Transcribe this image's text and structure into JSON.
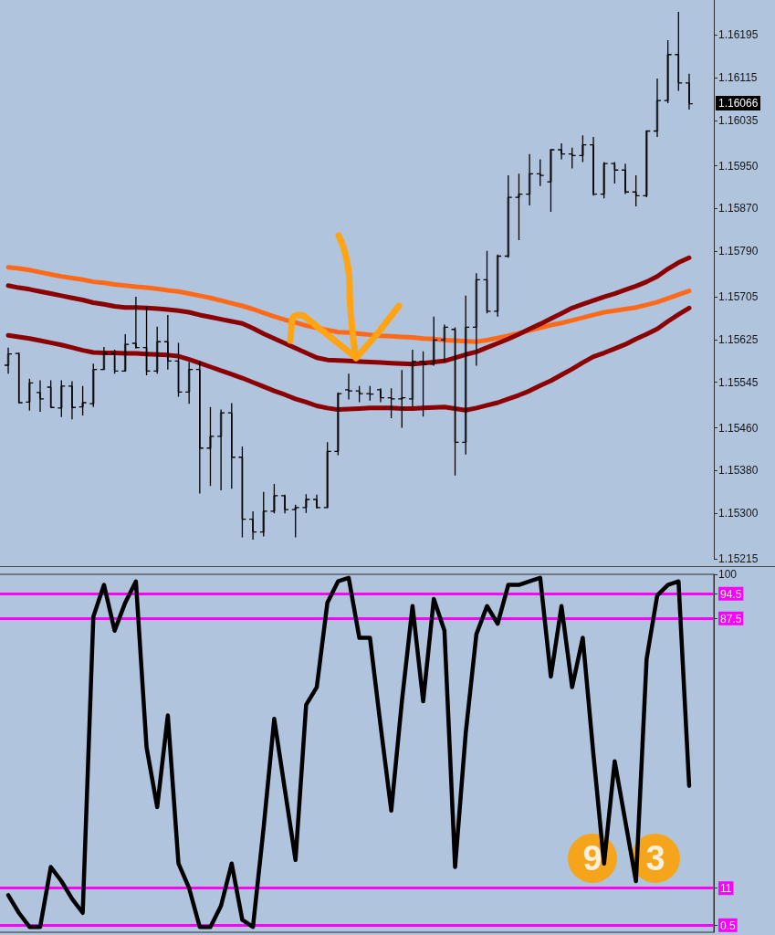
{
  "chart_data": [
    {
      "type": "candlestick",
      "categories": [
        null,
        null,
        null,
        null,
        null,
        null,
        null,
        null,
        null,
        null,
        null,
        null,
        null,
        null,
        null,
        null,
        null,
        null,
        null,
        null,
        null,
        null,
        null,
        null,
        null,
        null,
        null,
        null,
        null,
        null,
        null,
        null,
        null,
        null,
        null,
        null,
        null,
        null,
        null,
        null,
        null,
        null,
        null,
        null,
        null,
        null,
        null,
        null,
        null,
        null,
        null,
        null,
        null,
        null,
        null,
        null,
        null,
        null,
        null,
        null,
        null,
        null,
        null,
        null,
        null
      ],
      "ohlc": [
        [
          1.15577,
          1.1561,
          1.15561,
          1.15598
        ],
        [
          1.15599,
          1.15601,
          1.15507,
          1.15507
        ],
        [
          1.15508,
          1.15552,
          1.15492,
          1.15544
        ],
        [
          1.15526,
          1.15549,
          1.1549,
          1.15514
        ],
        [
          1.15536,
          1.15549,
          1.15497,
          1.15498
        ],
        [
          1.15497,
          1.15549,
          1.1548,
          1.15538
        ],
        [
          1.15538,
          1.15547,
          1.15476,
          1.15498
        ],
        [
          1.15499,
          1.15538,
          1.15483,
          1.15507
        ],
        [
          1.15505,
          1.1558,
          1.15499,
          1.15569
        ],
        [
          1.15569,
          1.15611,
          1.15568,
          1.15599
        ],
        [
          1.15599,
          1.15606,
          1.15561,
          1.15566
        ],
        [
          1.15566,
          1.15635,
          1.15566,
          1.15616
        ],
        [
          1.15618,
          1.15705,
          1.15608,
          1.1561
        ],
        [
          1.1561,
          1.15686,
          1.15558,
          1.15566
        ],
        [
          1.15566,
          1.15649,
          1.15561,
          1.15621
        ],
        [
          1.15621,
          1.15671,
          1.15569,
          1.15585
        ],
        [
          1.15585,
          1.15619,
          1.15518,
          1.15527
        ],
        [
          1.15527,
          1.15583,
          1.15505,
          1.15569
        ],
        [
          1.15569,
          1.15585,
          1.15337,
          1.15422
        ],
        [
          1.15422,
          1.15499,
          1.15351,
          1.15444
        ],
        [
          1.15444,
          1.15494,
          1.15343,
          1.15488
        ],
        [
          1.15488,
          1.15506,
          1.15346,
          1.15405
        ],
        [
          1.15405,
          1.15425,
          1.15255,
          1.15289
        ],
        [
          1.15289,
          1.15304,
          1.15251,
          1.15265
        ],
        [
          1.15265,
          1.1534,
          1.15257,
          1.15304
        ],
        [
          1.15304,
          1.15355,
          1.153,
          1.15333
        ],
        [
          1.15333,
          1.15335,
          1.153,
          1.15307
        ],
        [
          1.15307,
          1.15316,
          1.15255,
          1.15311
        ],
        [
          1.15311,
          1.15336,
          1.15301,
          1.15326
        ],
        [
          1.15326,
          1.15335,
          1.15309,
          1.15311
        ],
        [
          1.15311,
          1.15433,
          1.15311,
          1.15416
        ],
        [
          1.15416,
          1.15526,
          1.15409,
          1.15524
        ],
        [
          1.15531,
          1.15561,
          1.15513,
          1.15529
        ],
        [
          1.15529,
          1.15538,
          1.15508,
          1.15524
        ],
        [
          1.15524,
          1.15538,
          1.15511,
          1.15523
        ],
        [
          1.15531,
          1.15534,
          1.15508,
          1.15516
        ],
        [
          1.15516,
          1.15534,
          1.15478,
          1.15514
        ],
        [
          1.15514,
          1.15568,
          1.1546,
          1.15516
        ],
        [
          1.15514,
          1.15606,
          1.15499,
          1.15584
        ],
        [
          1.15584,
          1.15603,
          1.15481,
          1.15579
        ],
        [
          1.15579,
          1.15668,
          1.15576,
          1.15624
        ],
        [
          1.15624,
          1.15653,
          1.15583,
          1.15648
        ],
        [
          1.15644,
          1.15648,
          1.15371,
          1.15433
        ],
        [
          1.15433,
          1.15707,
          1.1541,
          1.15648
        ],
        [
          1.15648,
          1.15749,
          1.15576,
          1.15737
        ],
        [
          1.15737,
          1.15791,
          1.15674,
          1.15678
        ],
        [
          1.15678,
          1.15784,
          1.15668,
          1.15781
        ],
        [
          1.15781,
          1.15932,
          1.15778,
          1.15891
        ],
        [
          1.15891,
          1.15935,
          1.15811,
          1.15897
        ],
        [
          1.15897,
          1.15972,
          1.15876,
          1.15935
        ],
        [
          1.15935,
          1.15962,
          1.15912,
          1.15932
        ],
        [
          1.1592,
          1.1598,
          1.15864,
          1.1598
        ],
        [
          1.1598,
          1.15992,
          1.15962,
          1.15972
        ],
        [
          1.15972,
          1.15984,
          1.15945,
          1.15969
        ],
        [
          1.15969,
          1.16007,
          1.15957,
          1.15989
        ],
        [
          1.15989,
          1.16004,
          1.15894,
          1.15897
        ],
        [
          1.15897,
          1.15957,
          1.15889,
          1.15954
        ],
        [
          1.15954,
          1.15957,
          1.15917,
          1.15942
        ],
        [
          1.15942,
          1.15954,
          1.15897,
          1.15901
        ],
        [
          1.15901,
          1.15932,
          1.15874,
          1.15894
        ],
        [
          1.15894,
          1.16015,
          1.15891,
          1.16015
        ],
        [
          1.16015,
          1.16113,
          1.16004,
          1.16072
        ],
        [
          1.16072,
          1.16185,
          1.16067,
          1.16158
        ],
        [
          1.16158,
          1.16238,
          1.1609,
          1.16105
        ],
        [
          1.16105,
          1.16122,
          1.16055,
          1.16066
        ]
      ],
      "color": "#000000",
      "series": [
        {
          "type": "line",
          "color": "#ff6a1a",
          "values": [
            1.1576,
            1.15758,
            1.15755,
            1.15751,
            1.15747,
            1.15743,
            1.1574,
            1.15737,
            1.15733,
            1.15731,
            1.15728,
            1.15726,
            1.15724,
            1.15722,
            1.1572,
            1.15717,
            1.15715,
            1.15711,
            1.15707,
            1.15703,
            1.15698,
            1.15693,
            1.15688,
            1.15682,
            1.15675,
            1.15668,
            1.15662,
            1.15657,
            1.15651,
            1.15647,
            1.15643,
            1.15639,
            1.15638,
            1.15636,
            1.15634,
            1.15632,
            1.15631,
            1.1563,
            1.15629,
            1.15627,
            1.15626,
            1.15624,
            1.15623,
            1.15622,
            1.15621,
            1.15624,
            1.15628,
            1.15632,
            1.15637,
            1.15642,
            1.15647,
            1.15652,
            1.15656,
            1.15661,
            1.15666,
            1.15671,
            1.15676,
            1.15679,
            1.15682,
            1.15685,
            1.1569,
            1.15695,
            1.15702,
            1.15709,
            1.15716
          ]
        },
        {
          "type": "line",
          "color": "#8b0000",
          "values": [
            1.15726,
            1.15722,
            1.15719,
            1.15715,
            1.15711,
            1.15707,
            1.15703,
            1.15699,
            1.15694,
            1.15691,
            1.15687,
            1.15685,
            1.15685,
            1.15684,
            1.15683,
            1.15681,
            1.15679,
            1.15676,
            1.15671,
            1.15667,
            1.15663,
            1.15659,
            1.15655,
            1.15646,
            1.15636,
            1.15627,
            1.15618,
            1.15609,
            1.156,
            1.15591,
            1.15587,
            1.15586,
            1.15585,
            1.15584,
            1.15583,
            1.15582,
            1.15581,
            1.1558,
            1.15579,
            1.15581,
            1.15583,
            1.15585,
            1.15591,
            1.15597,
            1.15602,
            1.1561,
            1.15618,
            1.15626,
            1.15635,
            1.15645,
            1.15654,
            1.15664,
            1.15674,
            1.15684,
            1.15691,
            1.15698,
            1.15705,
            1.15711,
            1.15718,
            1.15725,
            1.15733,
            1.15743,
            1.15757,
            1.15769,
            1.15778
          ]
        },
        {
          "type": "line",
          "color": "#8b0000",
          "values": [
            1.15633,
            1.1563,
            1.15627,
            1.15623,
            1.15619,
            1.15615,
            1.1561,
            1.15605,
            1.15601,
            1.156,
            1.156,
            1.15599,
            1.15599,
            1.15598,
            1.15597,
            1.15596,
            1.15594,
            1.15588,
            1.15581,
            1.15574,
            1.15567,
            1.1556,
            1.15553,
            1.15545,
            1.15537,
            1.15529,
            1.15522,
            1.15514,
            1.15508,
            1.15501,
            1.15497,
            1.15494,
            1.15495,
            1.15496,
            1.15497,
            1.15497,
            1.15497,
            1.15496,
            1.15496,
            1.15497,
            1.15498,
            1.15499,
            1.15496,
            1.15493,
            1.15497,
            1.15502,
            1.15507,
            1.15514,
            1.15521,
            1.15529,
            1.15539,
            1.15548,
            1.15559,
            1.1557,
            1.15582,
            1.15593,
            1.156,
            1.15608,
            1.15616,
            1.15626,
            1.15635,
            1.15645,
            1.15659,
            1.15672,
            1.15684
          ]
        }
      ],
      "ylim": [
        1.15215,
        1.1626
      ],
      "yticks": [
        1.16195,
        1.16115,
        1.16035,
        {
          "value": 1.1595,
          "label": "1.15950"
        },
        {
          "value": 1.1587,
          "label": "1.15870"
        },
        {
          "value": 1.1579,
          "label": "1.15790"
        },
        1.15705,
        1.15625,
        1.15545,
        {
          "value": 1.1546,
          "label": "1.15460"
        },
        {
          "value": 1.1538,
          "label": "1.15380"
        },
        {
          "value": 1.153,
          "label": "1.15300"
        },
        1.15215
      ],
      "annotations": [
        "1.16066"
      ],
      "tick_labels": "y"
    },
    {
      "type": "line",
      "categories": [
        null,
        null,
        null,
        null,
        null,
        null,
        null,
        null,
        null,
        null,
        null,
        null,
        null,
        null,
        null,
        null,
        null,
        null,
        null,
        null,
        null,
        null,
        null,
        null,
        null,
        null,
        null,
        null,
        null,
        null,
        null,
        null,
        null,
        null,
        null,
        null,
        null,
        null,
        null,
        null,
        null,
        null,
        null,
        null,
        null,
        null,
        null,
        null,
        null,
        null,
        null,
        null,
        null,
        null,
        null,
        null,
        null,
        null,
        null,
        null,
        null,
        null,
        null,
        null,
        null
      ],
      "values": [
        9,
        4,
        0,
        0,
        17,
        13,
        8,
        4,
        88,
        97,
        84,
        92,
        98,
        51,
        34,
        60,
        18,
        11,
        0,
        0,
        6,
        18,
        2,
        0,
        28,
        59,
        39,
        19,
        63,
        68,
        92,
        98,
        99,
        82,
        82,
        57,
        33,
        64,
        91,
        64,
        93,
        84,
        17,
        55,
        83,
        91,
        86,
        97,
        97,
        98,
        99,
        71,
        91,
        68,
        82,
        49,
        18,
        47,
        30,
        13,
        76,
        94,
        97,
        98,
        40
      ],
      "color": "#000000",
      "ylim": [
        -1.5,
        100
      ],
      "yticks": [
        100,
        94.5,
        87.5,
        11,
        0.5
      ],
      "ref_lines": [
        {
          "axis": "y",
          "value": 94.5,
          "color": "#ff00ff"
        },
        {
          "axis": "y",
          "value": 87.5,
          "color": "#ff00ff"
        },
        {
          "axis": "y",
          "value": 11,
          "color": "#ff00ff"
        },
        {
          "axis": "y",
          "value": 0.5,
          "color": "#ff00ff"
        }
      ],
      "annotations": [
        "9",
        "3"
      ],
      "tick_labels": "y"
    }
  ]
}
